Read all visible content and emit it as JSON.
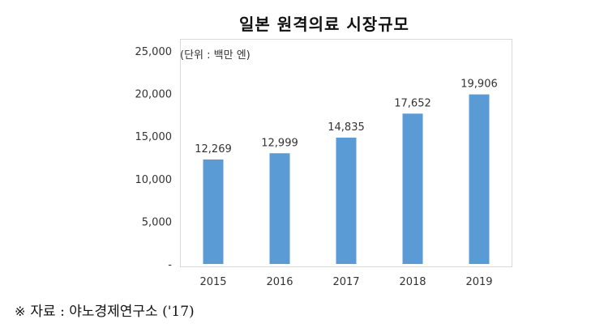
{
  "chart_data": {
    "type": "bar",
    "title": "일본 원격의료 시장규모",
    "unit_label": "(단위 : 백만 엔)",
    "categories": [
      "2015",
      "2016",
      "2017",
      "2018",
      "2019"
    ],
    "values": [
      12269,
      12999,
      14835,
      17652,
      19906
    ],
    "data_labels": [
      "12,269",
      "12,999",
      "14,835",
      "17,652",
      "19,906"
    ],
    "y_ticks": [
      {
        "value": 0,
        "label": "-"
      },
      {
        "value": 5000,
        "label": "5,000"
      },
      {
        "value": 10000,
        "label": "10,000"
      },
      {
        "value": 15000,
        "label": "15,000"
      },
      {
        "value": 20000,
        "label": "20,000"
      },
      {
        "value": 25000,
        "label": "25,000"
      }
    ],
    "ylim": [
      0,
      25000
    ],
    "grid": false,
    "legend": "none",
    "bar_color": "#5b9bd5",
    "xlabel": "",
    "ylabel": ""
  },
  "source": {
    "mark": "※",
    "text": "자료 : 야노경제연구소 ('17)"
  }
}
